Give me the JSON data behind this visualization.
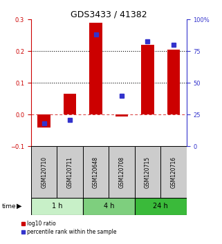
{
  "title": "GDS3433 / 41382",
  "samples": [
    "GSM120710",
    "GSM120711",
    "GSM120648",
    "GSM120708",
    "GSM120715",
    "GSM120716"
  ],
  "log10_ratio": [
    -0.04,
    0.065,
    0.29,
    -0.005,
    0.22,
    0.205
  ],
  "percentile_rank_pct": [
    18,
    21,
    88,
    40,
    83,
    80
  ],
  "groups": [
    {
      "label": "1 h",
      "color": "#c8f0c8",
      "indices": [
        0,
        1
      ]
    },
    {
      "label": "4 h",
      "color": "#7ecf7e",
      "indices": [
        2,
        3
      ]
    },
    {
      "label": "24 h",
      "color": "#3aba3a",
      "indices": [
        4,
        5
      ]
    }
  ],
  "bar_color": "#cc0000",
  "dot_color": "#3333cc",
  "left_ylim": [
    -0.1,
    0.3
  ],
  "right_ylim": [
    0,
    100
  ],
  "left_yticks": [
    -0.1,
    0.0,
    0.1,
    0.2,
    0.3
  ],
  "right_yticks": [
    0,
    25,
    50,
    75,
    100
  ],
  "right_yticklabels": [
    "0",
    "25",
    "50",
    "75",
    "100%"
  ],
  "hline_y": [
    0.1,
    0.2
  ],
  "background_color": "#ffffff",
  "sample_box_color": "#cccccc",
  "bar_width": 0.5,
  "left_axis_color": "#cc0000",
  "right_axis_color": "#3333cc",
  "tick_fontsize": 6,
  "label_fontsize": 5.5,
  "group_fontsize": 7,
  "title_fontsize": 9
}
